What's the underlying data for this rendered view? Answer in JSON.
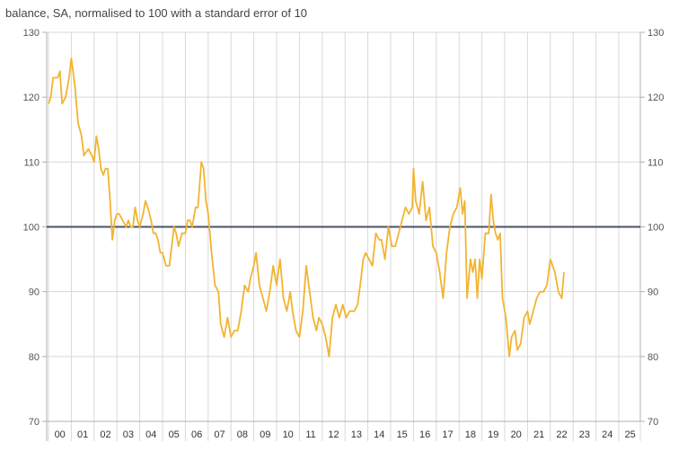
{
  "chart_data": {
    "type": "line",
    "title": "balance, SA, normalised to 100 with a standard error of 10",
    "xlabel": "",
    "ylabel": "",
    "ylim": [
      70,
      130
    ],
    "yticks": [
      70,
      80,
      90,
      100,
      110,
      120,
      130
    ],
    "reference_line": 100,
    "grid": true,
    "x_tick_labels": [
      "00",
      "01",
      "02",
      "03",
      "04",
      "05",
      "06",
      "07",
      "08",
      "09",
      "10",
      "11",
      "12",
      "13",
      "14",
      "15",
      "16",
      "17",
      "18",
      "19",
      "20",
      "21",
      "22",
      "23",
      "24",
      "25"
    ],
    "x_start_year": 2000,
    "colors": {
      "series": "#f2b430",
      "reference": "#4a5266",
      "grid": "#d9d9d9",
      "axis": "#b0b0b0"
    },
    "series": [
      {
        "name": "balance",
        "points": [
          [
            2000.0,
            119
          ],
          [
            2000.1,
            120
          ],
          [
            2000.2,
            123
          ],
          [
            2000.4,
            123
          ],
          [
            2000.5,
            124
          ],
          [
            2000.6,
            119
          ],
          [
            2000.75,
            120
          ],
          [
            2000.9,
            123
          ],
          [
            2001.0,
            126
          ],
          [
            2001.15,
            122
          ],
          [
            2001.3,
            116
          ],
          [
            2001.45,
            114
          ],
          [
            2001.55,
            111
          ],
          [
            2001.75,
            112
          ],
          [
            2001.9,
            111
          ],
          [
            2002.0,
            110
          ],
          [
            2002.1,
            114
          ],
          [
            2002.2,
            112
          ],
          [
            2002.3,
            109
          ],
          [
            2002.4,
            108
          ],
          [
            2002.5,
            109
          ],
          [
            2002.6,
            109
          ],
          [
            2002.7,
            104
          ],
          [
            2002.8,
            98
          ],
          [
            2002.9,
            101
          ],
          [
            2003.0,
            102
          ],
          [
            2003.1,
            102
          ],
          [
            2003.25,
            101
          ],
          [
            2003.4,
            100
          ],
          [
            2003.5,
            101
          ],
          [
            2003.6,
            100
          ],
          [
            2003.7,
            100
          ],
          [
            2003.8,
            103
          ],
          [
            2003.9,
            101
          ],
          [
            2004.0,
            100
          ],
          [
            2004.15,
            102
          ],
          [
            2004.25,
            104
          ],
          [
            2004.35,
            103
          ],
          [
            2004.5,
            101
          ],
          [
            2004.6,
            99
          ],
          [
            2004.7,
            99
          ],
          [
            2004.8,
            98
          ],
          [
            2004.9,
            96
          ],
          [
            2005.0,
            96
          ],
          [
            2005.15,
            94
          ],
          [
            2005.3,
            94
          ],
          [
            2005.4,
            97
          ],
          [
            2005.5,
            100
          ],
          [
            2005.6,
            99
          ],
          [
            2005.7,
            97
          ],
          [
            2005.85,
            99
          ],
          [
            2006.0,
            99
          ],
          [
            2006.1,
            101
          ],
          [
            2006.2,
            101
          ],
          [
            2006.3,
            100
          ],
          [
            2006.45,
            103
          ],
          [
            2006.55,
            103
          ],
          [
            2006.7,
            110
          ],
          [
            2006.8,
            109
          ],
          [
            2006.9,
            104
          ],
          [
            2007.0,
            102
          ],
          [
            2007.15,
            96
          ],
          [
            2007.3,
            91
          ],
          [
            2007.45,
            90
          ],
          [
            2007.55,
            85
          ],
          [
            2007.7,
            83
          ],
          [
            2007.85,
            86
          ],
          [
            2008.0,
            83
          ],
          [
            2008.15,
            84
          ],
          [
            2008.3,
            84
          ],
          [
            2008.45,
            87
          ],
          [
            2008.6,
            91
          ],
          [
            2008.75,
            90
          ],
          [
            2008.85,
            92
          ],
          [
            2009.0,
            94
          ],
          [
            2009.1,
            96
          ],
          [
            2009.25,
            91
          ],
          [
            2009.4,
            89
          ],
          [
            2009.55,
            87
          ],
          [
            2009.7,
            90
          ],
          [
            2009.85,
            94
          ],
          [
            2010.0,
            91
          ],
          [
            2010.15,
            95
          ],
          [
            2010.3,
            89
          ],
          [
            2010.45,
            87
          ],
          [
            2010.6,
            90
          ],
          [
            2010.7,
            87
          ],
          [
            2010.85,
            84
          ],
          [
            2011.0,
            83
          ],
          [
            2011.15,
            87
          ],
          [
            2011.3,
            94
          ],
          [
            2011.45,
            90
          ],
          [
            2011.6,
            86
          ],
          [
            2011.75,
            84
          ],
          [
            2011.85,
            86
          ],
          [
            2012.0,
            85
          ],
          [
            2012.15,
            83
          ],
          [
            2012.3,
            80
          ],
          [
            2012.45,
            86
          ],
          [
            2012.6,
            88
          ],
          [
            2012.75,
            86
          ],
          [
            2012.9,
            88
          ],
          [
            2013.05,
            86
          ],
          [
            2013.2,
            87
          ],
          [
            2013.4,
            87
          ],
          [
            2013.55,
            88
          ],
          [
            2013.7,
            92
          ],
          [
            2013.8,
            95
          ],
          [
            2013.9,
            96
          ],
          [
            2014.05,
            95
          ],
          [
            2014.2,
            94
          ],
          [
            2014.35,
            99
          ],
          [
            2014.5,
            98
          ],
          [
            2014.6,
            98
          ],
          [
            2014.75,
            95
          ],
          [
            2014.9,
            100
          ],
          [
            2015.05,
            97
          ],
          [
            2015.2,
            97
          ],
          [
            2015.35,
            99
          ],
          [
            2015.5,
            101
          ],
          [
            2015.65,
            103
          ],
          [
            2015.8,
            102
          ],
          [
            2015.95,
            103
          ],
          [
            2016.0,
            109
          ],
          [
            2016.1,
            104
          ],
          [
            2016.25,
            102
          ],
          [
            2016.4,
            107
          ],
          [
            2016.55,
            101
          ],
          [
            2016.7,
            103
          ],
          [
            2016.85,
            97
          ],
          [
            2017.0,
            96
          ],
          [
            2017.15,
            93
          ],
          [
            2017.3,
            89
          ],
          [
            2017.45,
            96
          ],
          [
            2017.6,
            100
          ],
          [
            2017.75,
            102
          ],
          [
            2017.9,
            103
          ],
          [
            2018.05,
            106
          ],
          [
            2018.15,
            102
          ],
          [
            2018.25,
            104
          ],
          [
            2018.35,
            89
          ],
          [
            2018.5,
            95
          ],
          [
            2018.6,
            93
          ],
          [
            2018.7,
            95
          ],
          [
            2018.8,
            89
          ],
          [
            2018.9,
            95
          ],
          [
            2019.0,
            92
          ],
          [
            2019.15,
            99
          ],
          [
            2019.3,
            99
          ],
          [
            2019.4,
            105
          ],
          [
            2019.5,
            101
          ],
          [
            2019.6,
            99
          ],
          [
            2019.7,
            98
          ],
          [
            2019.8,
            99
          ],
          [
            2019.9,
            89
          ],
          [
            2020.05,
            86
          ],
          [
            2020.2,
            80
          ],
          [
            2020.3,
            83
          ],
          [
            2020.45,
            84
          ],
          [
            2020.55,
            81
          ],
          [
            2020.7,
            82
          ],
          [
            2020.85,
            86
          ],
          [
            2021.0,
            87
          ],
          [
            2021.1,
            85
          ],
          [
            2021.25,
            87
          ],
          [
            2021.4,
            89
          ],
          [
            2021.55,
            90
          ],
          [
            2021.7,
            90
          ],
          [
            2021.85,
            91
          ],
          [
            2022.0,
            95
          ],
          [
            2022.1,
            94
          ],
          [
            2022.2,
            93
          ],
          [
            2022.35,
            90
          ],
          [
            2022.5,
            89
          ],
          [
            2022.6,
            93
          ]
        ]
      }
    ]
  }
}
